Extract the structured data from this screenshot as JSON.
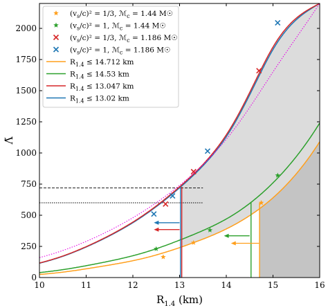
{
  "chart_data": {
    "type": "line",
    "xlabel": "R1.4 (km)",
    "ylabel": "Λ̃",
    "xlim": [
      10,
      16
    ],
    "ylim": [
      0,
      2200
    ],
    "xticks": [
      "10",
      "11",
      "12",
      "13",
      "14",
      "15",
      "16"
    ],
    "yticks": [
      "0",
      "250",
      "500",
      "750",
      "1000",
      "1250",
      "1500",
      "1750",
      "2000"
    ],
    "grid": false,
    "legend": "top-left",
    "curves": [
      {
        "name": "R1.4 ≤ 13.02 km",
        "color": "#1f77b4",
        "x": [
          10,
          11,
          12,
          13,
          14,
          15,
          16
        ],
        "y": [
          115,
          245,
          440,
          720,
          1130,
          1830,
          2200
        ]
      },
      {
        "name": "R1.4 ≤ 13.047 km",
        "color": "#d62728",
        "x": [
          10,
          11,
          12,
          13,
          14,
          15,
          16
        ],
        "y": [
          117,
          248,
          445,
          728,
          1145,
          1850,
          2200
        ]
      },
      {
        "name": "R1.4 ≤ 14.53 km",
        "color": "#2ca02c",
        "x": [
          10,
          11,
          12,
          13,
          14,
          15,
          16
        ],
        "y": [
          40,
          95,
          175,
          300,
          470,
          760,
          1240
        ]
      },
      {
        "name": "R1.4 ≤ 14.712 km",
        "color": "#ff9f1c",
        "x": [
          10,
          11,
          12,
          13,
          14,
          15,
          16
        ],
        "y": [
          25,
          70,
          135,
          240,
          390,
          640,
          1090
        ]
      },
      {
        "name": "",
        "color": "#e600e6",
        "style": "dotted",
        "x": [
          10,
          11,
          12,
          13,
          14,
          15,
          16
        ],
        "y": [
          160,
          290,
          480,
          740,
          1110,
          1650,
          2200
        ]
      }
    ],
    "points": [
      {
        "name": "(vs/c)^2 = 1/3, Mc = 1.44 M⊙",
        "marker": "star",
        "color": "#ff9f1c",
        "x": [
          12.65,
          13.3,
          14.75
        ],
        "y": [
          165,
          280,
          600
        ]
      },
      {
        "name": "(vs/c)^2 = 1, Mc = 1.44 M⊙",
        "marker": "star",
        "color": "#2ca02c",
        "x": [
          12.5,
          13.65,
          15.1
        ],
        "y": [
          230,
          380,
          820
        ]
      },
      {
        "name": "(vs/c)^2 = 1/3, Mc = 1.186 M⊙",
        "marker": "x",
        "color": "#d62728",
        "x": [
          12.7,
          13.3,
          14.7
        ],
        "y": [
          590,
          850,
          1660
        ]
      },
      {
        "name": "(vs/c)^2 = 1, Mc = 1.186 M⊙",
        "marker": "x",
        "color": "#1f77b4",
        "x": [
          12.45,
          12.85,
          13.6,
          15.1
        ],
        "y": [
          510,
          655,
          1015,
          2045
        ]
      }
    ],
    "constraints": [
      {
        "color": "#1f77b4",
        "r": 13.02,
        "lambda": 720
      },
      {
        "color": "#d62728",
        "r": 13.047,
        "lambda": 728
      },
      {
        "color": "#2ca02c",
        "r": 14.53,
        "lambda": 600
      },
      {
        "color": "#ff9f1c",
        "r": 14.712,
        "lambda": 600
      }
    ],
    "hlines": [
      {
        "y": 720,
        "style": "dashed"
      },
      {
        "y": 600,
        "style": "dotted"
      }
    ],
    "arrows": [
      {
        "color": "#1f77b4",
        "x_from": 13.0,
        "x_to": 12.45,
        "y": 440
      },
      {
        "color": "#d62728",
        "x_from": 13.0,
        "x_to": 12.45,
        "y": 385
      },
      {
        "color": "#2ca02c",
        "x_from": 14.5,
        "x_to": 13.95,
        "y": 335
      },
      {
        "color": "#ff9f1c",
        "x_from": 14.7,
        "x_to": 14.1,
        "y": 275
      }
    ],
    "shading": [
      {
        "between": [
          "R1.4 ≤ 13.047 km",
          "R1.4 ≤ 14.712 km"
        ],
        "x_from": 13.047,
        "color": "#dcdcdc"
      },
      {
        "below": "R1.4 ≤ 14.712 km",
        "x_from": 14.712,
        "color": "#c4c4c4"
      }
    ],
    "legend_entries": [
      {
        "label_main": "(v",
        "label_sub": "s",
        "label_rest": "/c)² = 1/3,  ℳ",
        "label_sub2": "c",
        "label_end": " = 1.44 M☉",
        "marker": "star",
        "color": "#ff9f1c"
      },
      {
        "label_main": "(v",
        "label_sub": "s",
        "label_rest": "/c)² = 1,  ℳ",
        "label_sub2": "c",
        "label_end": " = 1.44 M☉",
        "marker": "star",
        "color": "#2ca02c"
      },
      {
        "label_main": "(v",
        "label_sub": "s",
        "label_rest": "/c)² = 1/3,  ℳ",
        "label_sub2": "c",
        "label_end": " = 1.186 M☉",
        "marker": "x",
        "color": "#d62728"
      },
      {
        "label_main": "(v",
        "label_sub": "s",
        "label_rest": "/c)² = 1,  ℳ",
        "label_sub2": "c",
        "label_end": " = 1.186 M☉",
        "marker": "x",
        "color": "#1f77b4"
      },
      {
        "label_main": "R",
        "label_sub": "1.4",
        "label_rest": " ≤ 14.712 km",
        "label_sub2": "",
        "label_end": "",
        "marker": "line",
        "color": "#ff9f1c"
      },
      {
        "label_main": "R",
        "label_sub": "1.4",
        "label_rest": " ≤ 14.53 km",
        "label_sub2": "",
        "label_end": "",
        "marker": "line",
        "color": "#2ca02c"
      },
      {
        "label_main": "R",
        "label_sub": "1.4",
        "label_rest": " ≤ 13.047 km",
        "label_sub2": "",
        "label_end": "",
        "marker": "line",
        "color": "#d62728"
      },
      {
        "label_main": "R",
        "label_sub": "1.4",
        "label_rest": " ≤ 13.02 km",
        "label_sub2": "",
        "label_end": "",
        "marker": "line",
        "color": "#1f77b4"
      }
    ]
  }
}
